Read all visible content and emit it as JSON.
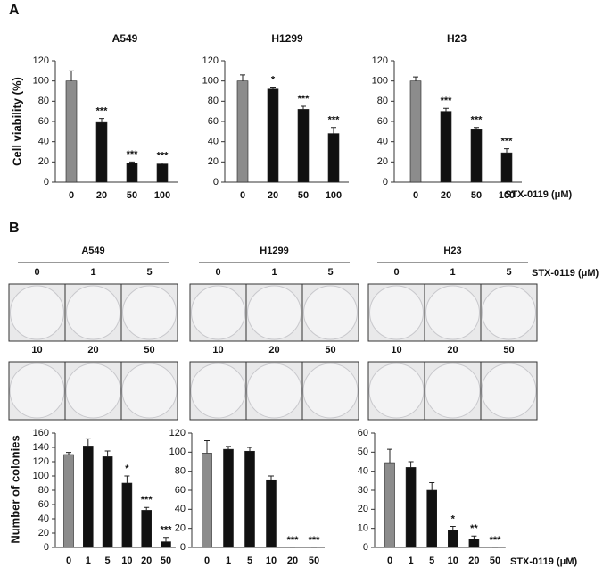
{
  "panels": [
    "A",
    "B"
  ],
  "chart_data": [
    {
      "type": "bar",
      "title": "A549",
      "ylabel": "Cell viability (%)",
      "categories": [
        "0",
        "20",
        "50",
        "100"
      ],
      "values": [
        100,
        59,
        19,
        18
      ],
      "errors": [
        10,
        4,
        1,
        1
      ],
      "annotations": [
        null,
        "***",
        "***",
        "***"
      ],
      "colors": [
        "#8c8c8c",
        "#111111",
        "#111111",
        "#111111"
      ],
      "ylim": [
        0,
        120
      ],
      "yticks": [
        0,
        20,
        40,
        60,
        80,
        100,
        120
      ]
    },
    {
      "type": "bar",
      "title": "H1299",
      "categories": [
        "0",
        "20",
        "50",
        "100"
      ],
      "values": [
        100,
        92,
        72,
        48
      ],
      "errors": [
        6,
        2,
        3,
        6
      ],
      "annotations": [
        null,
        "*",
        "***",
        "***"
      ],
      "colors": [
        "#8c8c8c",
        "#111111",
        "#111111",
        "#111111"
      ],
      "ylim": [
        0,
        120
      ],
      "yticks": [
        0,
        20,
        40,
        60,
        80,
        100,
        120
      ]
    },
    {
      "type": "bar",
      "title": "H23",
      "xlabel": "STX-0119 (μM)",
      "categories": [
        "0",
        "20",
        "50",
        "100"
      ],
      "values": [
        100,
        70,
        52,
        29
      ],
      "errors": [
        4,
        3,
        2,
        4
      ],
      "annotations": [
        null,
        "***",
        "***",
        "***"
      ],
      "colors": [
        "#8c8c8c",
        "#111111",
        "#111111",
        "#111111"
      ],
      "ylim": [
        0,
        120
      ],
      "yticks": [
        0,
        20,
        40,
        60,
        80,
        100,
        120
      ]
    },
    {
      "type": "bar",
      "ylabel": "Number of colonies",
      "categories": [
        "0",
        "1",
        "5",
        "10",
        "20",
        "50"
      ],
      "values": [
        130,
        142,
        127,
        90,
        52,
        8
      ],
      "errors": [
        3,
        10,
        8,
        10,
        4,
        6
      ],
      "annotations": [
        null,
        null,
        null,
        "*",
        "***",
        "***"
      ],
      "colors": [
        "#8c8c8c",
        "#111111",
        "#111111",
        "#111111",
        "#111111",
        "#111111"
      ],
      "ylim": [
        0,
        160
      ],
      "yticks": [
        0,
        20,
        40,
        60,
        80,
        100,
        120,
        140,
        160
      ]
    },
    {
      "type": "bar",
      "categories": [
        "0",
        "1",
        "5",
        "10",
        "20",
        "50"
      ],
      "values": [
        99,
        103,
        101,
        71,
        0,
        0
      ],
      "errors": [
        13,
        3,
        4,
        4,
        0,
        0
      ],
      "annotations": [
        null,
        null,
        null,
        null,
        "***",
        "***"
      ],
      "colors": [
        "#8c8c8c",
        "#111111",
        "#111111",
        "#111111",
        "#111111",
        "#111111"
      ],
      "ylim": [
        0,
        120
      ],
      "yticks": [
        0,
        20,
        40,
        60,
        80,
        100,
        120
      ]
    },
    {
      "type": "bar",
      "xlabel": "STX-0119 (μM)",
      "categories": [
        "0",
        "1",
        "5",
        "10",
        "20",
        "50"
      ],
      "values": [
        44.5,
        42,
        30,
        9,
        4.5,
        0
      ],
      "errors": [
        7,
        3,
        4,
        2,
        1.5,
        0
      ],
      "annotations": [
        null,
        null,
        null,
        "*",
        "**",
        "***"
      ],
      "colors": [
        "#8c8c8c",
        "#111111",
        "#111111",
        "#111111",
        "#111111",
        "#111111"
      ],
      "ylim": [
        0,
        60
      ],
      "yticks": [
        0,
        10,
        20,
        30,
        40,
        50,
        60
      ]
    }
  ],
  "colony_assay": {
    "dose_label": "STX-0119 (μM)",
    "groups": [
      {
        "name": "A549",
        "doses": [
          "0",
          "1",
          "5",
          "10",
          "20",
          "50"
        ]
      },
      {
        "name": "H1299",
        "doses": [
          "0",
          "1",
          "5",
          "10",
          "20",
          "50"
        ]
      },
      {
        "name": "H23",
        "doses": [
          "0",
          "1",
          "5",
          "10",
          "20",
          "50"
        ]
      }
    ]
  }
}
